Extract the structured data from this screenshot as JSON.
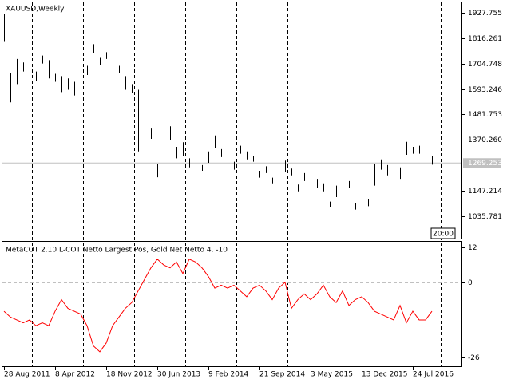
{
  "chart_data": [
    {
      "type": "ohlc",
      "title": "XAUUSD,Weekly",
      "time_label": "20:00",
      "color": "#000000",
      "categories": [
        "28 Aug 2011",
        null,
        null,
        null,
        null,
        null,
        null,
        null,
        "8 Apr 2012",
        null,
        null,
        null,
        null,
        null,
        null,
        null,
        "18 Nov 2012",
        null,
        null,
        null,
        null,
        null,
        null,
        null,
        "30 Jun 2013",
        null,
        null,
        null,
        null,
        null,
        null,
        null,
        "9 Feb 2014",
        null,
        null,
        null,
        null,
        null,
        null,
        null,
        "21 Sep 2014",
        null,
        null,
        null,
        null,
        null,
        null,
        null,
        "3 May 2015",
        null,
        null,
        null,
        null,
        null,
        null,
        null,
        "13 Dec 2015",
        null,
        null,
        null,
        null,
        null,
        null,
        null,
        "24 Jul 2016",
        null,
        null,
        null
      ],
      "high": [
        1921,
        1665,
        1725,
        1710,
        1620,
        1670,
        1740,
        1720,
        1660,
        1650,
        1640,
        1625,
        1620,
        1695,
        1790,
        1730,
        1755,
        1700,
        1695,
        1650,
        1615,
        1590,
        1480,
        1420,
        1265,
        1330,
        1430,
        1340,
        1360,
        1290,
        1260,
        1260,
        1320,
        1390,
        1330,
        1315,
        1275,
        1345,
        1320,
        1300,
        1235,
        1255,
        1205,
        1225,
        1280,
        1245,
        1175,
        1225,
        1195,
        1200,
        1180,
        1100,
        1170,
        1160,
        1190,
        1095,
        1080,
        1110,
        1263,
        1285,
        1260,
        1305,
        1250,
        1362,
        1340,
        1345,
        1340,
        1300
      ],
      "low": [
        1800,
        1535,
        1615,
        1670,
        1580,
        1630,
        1705,
        1640,
        1625,
        1580,
        1590,
        1565,
        1590,
        1655,
        1750,
        1700,
        1725,
        1635,
        1665,
        1590,
        1575,
        1320,
        1440,
        1375,
        1207,
        1280,
        1370,
        1290,
        1300,
        1250,
        1190,
        1235,
        1270,
        1335,
        1295,
        1285,
        1240,
        1310,
        1285,
        1275,
        1205,
        1225,
        1180,
        1180,
        1230,
        1215,
        1145,
        1190,
        1170,
        1160,
        1145,
        1077,
        1120,
        1125,
        1160,
        1065,
        1046,
        1080,
        1170,
        1240,
        1215,
        1265,
        1200,
        1305,
        1310,
        1310,
        1310,
        1262
      ],
      "current_price": {
        "value": 1269.253,
        "label": "1269.253"
      },
      "ylim": [
        938,
        1973
      ],
      "yticks": [
        1927.755,
        1816.261,
        1704.748,
        1593.246,
        1481.753,
        {
          "value": 1370.26,
          "label": "1370.260"
        },
        1147.214,
        1035.781
      ]
    },
    {
      "type": "line",
      "title": "MetaCOT 2.10 L-COT Netto Largest Pos, Gold Net Netto 4, -10",
      "color": "#ff0000",
      "zero_line": true,
      "values": [
        -10,
        -12,
        -13,
        -14,
        -13,
        -15,
        -14,
        -15,
        -10,
        -6,
        -9,
        -10,
        -11,
        -15,
        -22,
        -24,
        -21,
        -15,
        -12,
        -9,
        -7,
        -3,
        1,
        5,
        8,
        6,
        5,
        7,
        3,
        8,
        7,
        5,
        2,
        -2,
        -1,
        -2,
        -1,
        -3,
        -5,
        -2,
        -1,
        -3,
        -6,
        -2,
        0,
        -9,
        -6,
        -4,
        -6,
        -4,
        -1,
        -5,
        -7,
        -3,
        -8,
        -6,
        -5,
        -7,
        -10,
        -11,
        -12,
        -13,
        -8,
        -14,
        -10,
        -13,
        -13,
        -10
      ],
      "ylim": [
        -29,
        14
      ],
      "yticks": [
        12,
        0,
        -26
      ]
    }
  ]
}
